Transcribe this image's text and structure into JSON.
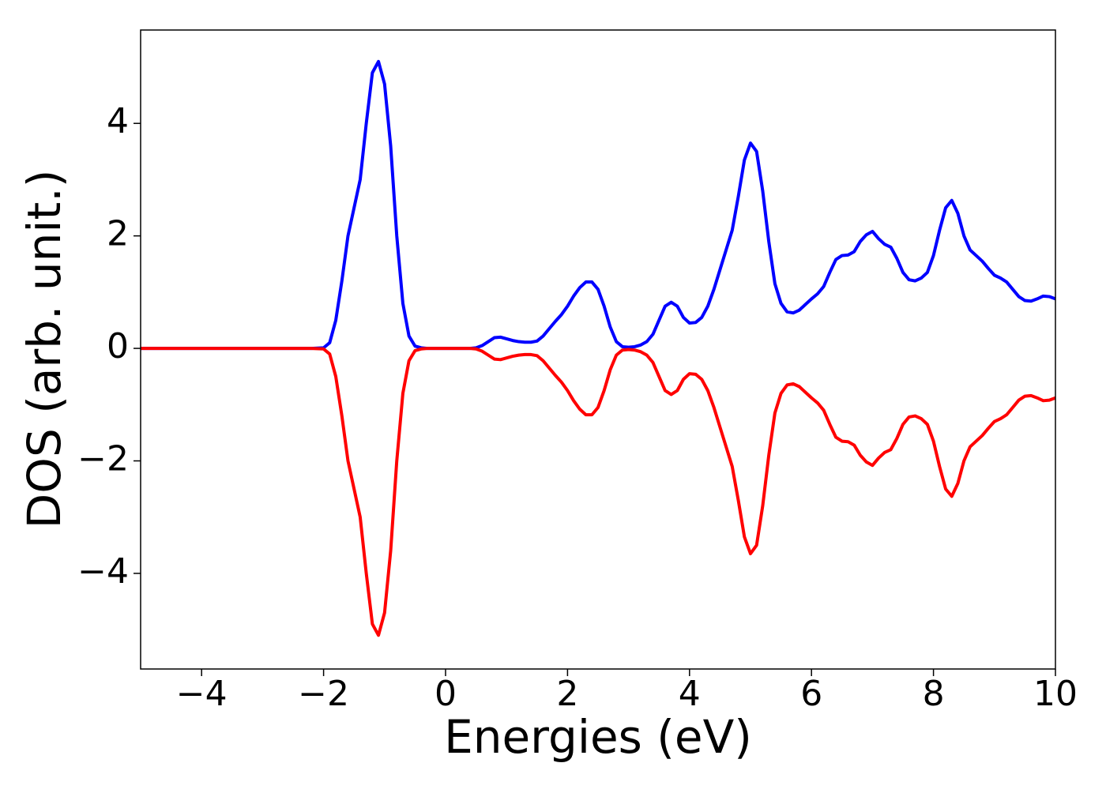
{
  "chart_data": {
    "type": "line",
    "xlabel": "Energies (eV)",
    "ylabel": "DOS (arb. unit.)",
    "xlim": [
      -5,
      10
    ],
    "ylim": [
      -5.7,
      5.66
    ],
    "xticks": [
      {
        "value": -4,
        "label": "−4"
      },
      {
        "value": -2,
        "label": "−2"
      },
      0,
      2,
      4,
      6,
      8,
      10
    ],
    "yticks": [
      {
        "value": -4,
        "label": "−4"
      },
      {
        "value": -2,
        "label": "−2"
      },
      0,
      2,
      4
    ],
    "grid": false,
    "x": [
      -5,
      -2.2,
      -2.0,
      -1.9,
      -1.8,
      -1.7,
      -1.6,
      -1.5,
      -1.4,
      -1.3,
      -1.2,
      -1.1,
      -1.0,
      -0.9,
      -0.8,
      -0.7,
      -0.6,
      -0.5,
      -0.4,
      -0.3,
      -0.2,
      -0.1,
      0.0,
      0.1,
      0.2,
      0.3,
      0.4,
      0.5,
      0.6,
      0.7,
      0.8,
      0.9,
      1.0,
      1.1,
      1.2,
      1.3,
      1.4,
      1.5,
      1.6,
      1.7,
      1.8,
      1.9,
      2.0,
      2.1,
      2.2,
      2.3,
      2.4,
      2.5,
      2.6,
      2.7,
      2.8,
      2.9,
      3.0,
      3.1,
      3.2,
      3.3,
      3.4,
      3.5,
      3.6,
      3.7,
      3.8,
      3.9,
      4.0,
      4.1,
      4.2,
      4.3,
      4.4,
      4.5,
      4.6,
      4.7,
      4.8,
      4.9,
      5.0,
      5.1,
      5.2,
      5.3,
      5.4,
      5.5,
      5.6,
      5.7,
      5.8,
      5.9,
      6.0,
      6.1,
      6.2,
      6.3,
      6.4,
      6.5,
      6.6,
      6.7,
      6.8,
      6.9,
      7.0,
      7.1,
      7.2,
      7.3,
      7.4,
      7.5,
      7.6,
      7.7,
      7.8,
      7.9,
      8.0,
      8.1,
      8.2,
      8.3,
      8.4,
      8.5,
      8.6,
      8.7,
      8.8,
      8.9,
      9.0,
      9.1,
      9.2,
      9.3,
      9.4,
      9.5,
      9.6,
      9.7,
      9.8,
      9.9,
      10.0
    ],
    "series": [
      {
        "color": "#0000ff",
        "values": [
          0,
          0,
          0.01,
          0.1,
          0.5,
          1.2,
          2.0,
          2.5,
          3.0,
          4.0,
          4.9,
          5.1,
          4.7,
          3.6,
          2.0,
          0.8,
          0.22,
          0.04,
          0.01,
          0,
          0,
          0,
          0,
          0,
          0,
          0,
          0,
          0.01,
          0.05,
          0.12,
          0.19,
          0.2,
          0.17,
          0.14,
          0.12,
          0.11,
          0.11,
          0.13,
          0.22,
          0.35,
          0.48,
          0.6,
          0.75,
          0.93,
          1.08,
          1.18,
          1.18,
          1.05,
          0.75,
          0.38,
          0.12,
          0.03,
          0.02,
          0.03,
          0.06,
          0.12,
          0.25,
          0.5,
          0.75,
          0.82,
          0.75,
          0.55,
          0.45,
          0.46,
          0.55,
          0.75,
          1.05,
          1.4,
          1.75,
          2.1,
          2.7,
          3.35,
          3.65,
          3.5,
          2.8,
          1.9,
          1.15,
          0.8,
          0.65,
          0.63,
          0.68,
          0.78,
          0.88,
          0.97,
          1.1,
          1.35,
          1.58,
          1.65,
          1.66,
          1.72,
          1.9,
          2.02,
          2.08,
          1.95,
          1.85,
          1.8,
          1.6,
          1.35,
          1.22,
          1.2,
          1.25,
          1.35,
          1.65,
          2.1,
          2.5,
          2.63,
          2.4,
          2.0,
          1.75,
          1.65,
          1.55,
          1.42,
          1.3,
          1.25,
          1.18,
          1.05,
          0.92,
          0.85,
          0.84,
          0.88,
          0.93,
          0.92,
          0.88
        ]
      },
      {
        "color": "#ff0000",
        "values": [
          0,
          0,
          -0.01,
          -0.1,
          -0.5,
          -1.2,
          -2.0,
          -2.5,
          -3.0,
          -4.0,
          -4.9,
          -5.1,
          -4.7,
          -3.6,
          -2.0,
          -0.8,
          -0.22,
          -0.04,
          -0.01,
          0,
          0,
          0,
          0,
          0,
          0,
          0,
          0,
          -0.01,
          -0.05,
          -0.12,
          -0.19,
          -0.2,
          -0.17,
          -0.14,
          -0.12,
          -0.11,
          -0.11,
          -0.13,
          -0.22,
          -0.35,
          -0.48,
          -0.6,
          -0.75,
          -0.93,
          -1.08,
          -1.18,
          -1.18,
          -1.05,
          -0.75,
          -0.38,
          -0.12,
          -0.03,
          -0.02,
          -0.03,
          -0.06,
          -0.12,
          -0.25,
          -0.5,
          -0.75,
          -0.82,
          -0.75,
          -0.55,
          -0.45,
          -0.46,
          -0.55,
          -0.75,
          -1.05,
          -1.4,
          -1.75,
          -2.1,
          -2.7,
          -3.35,
          -3.65,
          -3.5,
          -2.8,
          -1.9,
          -1.15,
          -0.8,
          -0.65,
          -0.63,
          -0.68,
          -0.78,
          -0.88,
          -0.97,
          -1.1,
          -1.35,
          -1.58,
          -1.65,
          -1.66,
          -1.72,
          -1.9,
          -2.02,
          -2.08,
          -1.95,
          -1.85,
          -1.8,
          -1.6,
          -1.35,
          -1.22,
          -1.2,
          -1.25,
          -1.35,
          -1.65,
          -2.1,
          -2.5,
          -2.63,
          -2.4,
          -2.0,
          -1.75,
          -1.65,
          -1.55,
          -1.42,
          -1.3,
          -1.25,
          -1.18,
          -1.05,
          -0.92,
          -0.85,
          -0.84,
          -0.88,
          -0.93,
          -0.92,
          -0.88
        ]
      }
    ]
  }
}
